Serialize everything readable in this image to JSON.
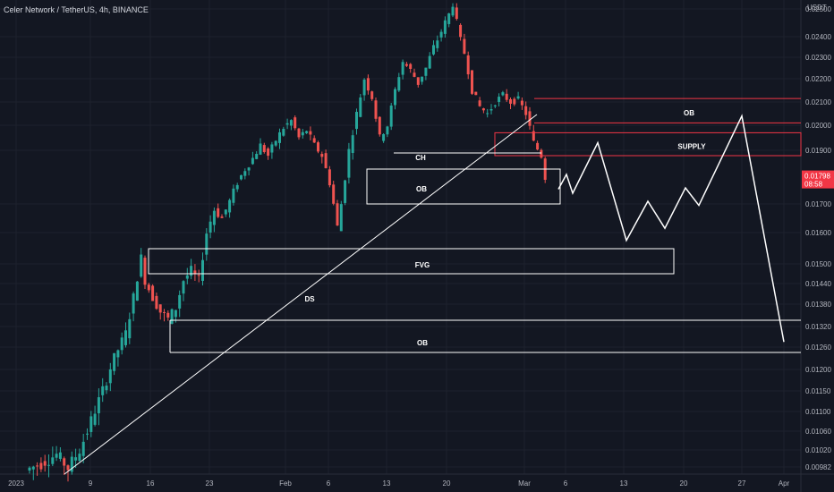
{
  "header": {
    "title": "Celer Network / TetherUS, 4h, BINANCE",
    "unit": "USDT"
  },
  "chart_data": {
    "type": "candlestick",
    "symbol": "Celer Network / TetherUS",
    "interval": "4h",
    "exchange": "BINANCE",
    "y_ticks": [
      0.025,
      0.024,
      0.023,
      0.022,
      0.021,
      0.02,
      0.019,
      0.017,
      0.016,
      0.015,
      0.0144,
      0.0138,
      0.0132,
      0.0126,
      0.012,
      0.0115,
      0.011,
      0.0106,
      0.0102,
      0.00982
    ],
    "y_tick_labels": [
      "0.02500",
      "0.02400",
      "0.02300",
      "0.02200",
      "0.02100",
      "0.02000",
      "0.01900",
      "0.01700",
      "0.01600",
      "0.01500",
      "0.01440",
      "0.01380",
      "0.01320",
      "0.01260",
      "0.01200",
      "0.01150",
      "0.01100",
      "0.01060",
      "0.01020",
      "0.00982"
    ],
    "x_tick_labels": [
      "2023",
      "9",
      "16",
      "23",
      "Feb",
      "6",
      "13",
      "20",
      "Mar",
      "6",
      "13",
      "20",
      "27",
      "Apr"
    ],
    "current_price": {
      "label": "0.01798",
      "timer": "08:58",
      "color": "#f23645"
    },
    "price_path": [
      [
        0,
        0.00975
      ],
      [
        4,
        0.0099
      ],
      [
        8,
        0.0101
      ],
      [
        11,
        0.0098
      ],
      [
        14,
        0.0102
      ],
      [
        17,
        0.0108
      ],
      [
        20,
        0.0115
      ],
      [
        23,
        0.0123
      ],
      [
        26,
        0.013
      ],
      [
        28,
        0.014
      ],
      [
        30,
        0.0152
      ],
      [
        31,
        0.0145
      ],
      [
        33,
        0.014
      ],
      [
        35,
        0.0136
      ],
      [
        37,
        0.0134
      ],
      [
        39,
        0.0137
      ],
      [
        41,
        0.0145
      ],
      [
        43,
        0.0148
      ],
      [
        45,
        0.0145
      ],
      [
        47,
        0.016
      ],
      [
        49,
        0.0168
      ],
      [
        51,
        0.0165
      ],
      [
        53,
        0.0171
      ],
      [
        55,
        0.0178
      ],
      [
        57,
        0.0183
      ],
      [
        59,
        0.0187
      ],
      [
        61,
        0.0192
      ],
      [
        63,
        0.0188
      ],
      [
        65,
        0.0194
      ],
      [
        67,
        0.0199
      ],
      [
        69,
        0.0202
      ],
      [
        71,
        0.0195
      ],
      [
        73,
        0.0198
      ],
      [
        75,
        0.0192
      ],
      [
        77,
        0.0188
      ],
      [
        79,
        0.0178
      ],
      [
        81,
        0.0162
      ],
      [
        82,
        0.017
      ],
      [
        84,
        0.019
      ],
      [
        86,
        0.0205
      ],
      [
        88,
        0.022
      ],
      [
        90,
        0.0212
      ],
      [
        92,
        0.0195
      ],
      [
        94,
        0.02
      ],
      [
        96,
        0.0215
      ],
      [
        98,
        0.0228
      ],
      [
        100,
        0.0224
      ],
      [
        102,
        0.0218
      ],
      [
        104,
        0.0225
      ],
      [
        106,
        0.0235
      ],
      [
        108,
        0.0242
      ],
      [
        110,
        0.0248
      ],
      [
        111,
        0.0252
      ],
      [
        112,
        0.0245
      ],
      [
        114,
        0.0232
      ],
      [
        116,
        0.0215
      ],
      [
        118,
        0.0208
      ],
      [
        120,
        0.0205
      ],
      [
        122,
        0.021
      ],
      [
        124,
        0.0213
      ],
      [
        126,
        0.021
      ],
      [
        128,
        0.0211
      ],
      [
        130,
        0.0205
      ],
      [
        132,
        0.0193
      ],
      [
        134,
        0.0188
      ],
      [
        135,
        0.018
      ]
    ],
    "projection": [
      [
        0.01755
      ],
      [
        0.0181
      ],
      [
        0.0174
      ],
      [
        0.0193
      ],
      [
        0.01575
      ],
      [
        0.0171
      ],
      [
        0.01615
      ],
      [
        0.0176
      ],
      [
        0.01695
      ],
      [
        0.0204
      ],
      [
        0.01275
      ]
    ],
    "zones": [
      {
        "label": "OB",
        "top": 0.02115,
        "bottom": 0.0201,
        "color": "#f23645"
      },
      {
        "label": "SUPPLY",
        "top": 0.0197,
        "bottom": 0.0188,
        "color": "#f23645"
      },
      {
        "label": "CH",
        "top": 0.0188,
        "bottom": 0.0188,
        "color": "#ffffff"
      },
      {
        "label": "OB",
        "top": 0.01815,
        "bottom": 0.01695,
        "color": "#ffffff"
      },
      {
        "label": "FVG",
        "top": 0.0155,
        "bottom": 0.01475,
        "color": "#ffffff"
      },
      {
        "label": "OB",
        "top": 0.01335,
        "bottom": 0.0125,
        "color": "#ffffff"
      },
      {
        "label": "DS",
        "top": null,
        "bottom": null,
        "color": "#ffffff"
      }
    ],
    "colors": {
      "up": "#26a69a",
      "down": "#ef5350",
      "background": "#131722",
      "grid": "#1e222d"
    }
  }
}
